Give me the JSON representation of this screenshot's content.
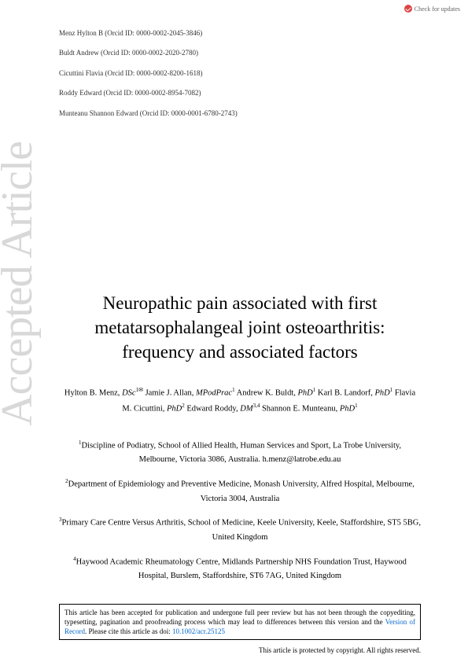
{
  "checkUpdates": "Check for updates",
  "orcid": [
    "Menz Hylton B (Orcid ID: 0000-0002-2045-3846)",
    "Buldt Andrew (Orcid ID: 0000-0002-2020-2780)",
    "Cicuttini Flavia (Orcid ID: 0000-0002-8200-1618)",
    "Roddy Edward (Orcid ID: 0000-0002-8954-7082)",
    "Munteanu Shannon Edward (Orcid ID: 0000-0001-6780-2743)"
  ],
  "watermark": "Accepted Article",
  "title": "Neuropathic pain associated with first metatarsophalangeal joint osteoarthritis: frequency and associated factors",
  "authors": {
    "a1_name": "Hylton B. Menz, ",
    "a1_deg": "DSc",
    "a1_sup": "1✉",
    "a2_name": " Jamie J. Allan, ",
    "a2_deg": "MPodPrac",
    "a2_sup": "1",
    "a3_name": " Andrew K. Buldt, ",
    "a3_deg": "PhD",
    "a3_sup": "1",
    "a4_name": " Karl B. Landorf, ",
    "a4_deg": "PhD",
    "a4_sup": "1",
    "a5_name": " Flavia M. Cicuttini, ",
    "a5_deg": "PhD",
    "a5_sup": "2",
    "a6_name": " Edward Roddy, ",
    "a6_deg": "DM",
    "a6_sup": "3,4",
    "a7_name": " Shannon E. Munteanu, ",
    "a7_deg": "PhD",
    "a7_sup": "1"
  },
  "affiliations": [
    {
      "sup": "1",
      "text": "Discipline of Podiatry, School of Allied Health, Human Services and Sport, La Trobe University, Melbourne, Victoria 3086, Australia. h.menz@latrobe.edu.au"
    },
    {
      "sup": "2",
      "text": "Department of Epidemiology and Preventive Medicine, Monash University, Alfred Hospital, Melbourne, Victoria 3004, Australia"
    },
    {
      "sup": "3",
      "text": "Primary Care Centre Versus Arthritis, School of Medicine, Keele University, Keele, Staffordshire, ST5 5BG, United Kingdom"
    },
    {
      "sup": "4",
      "text": "Haywood Academic Rheumatology Centre, Midlands Partnership NHS Foundation Trust, Haywood Hospital, Burslem, Staffordshire, ST6 7AG, United Kingdom"
    }
  ],
  "notice": {
    "pre": "This article has been accepted for publication and undergone full peer review but has not been through the copyediting, typesetting, pagination and proofreading process which may lead to differences between this version and the ",
    "vor": "Version of Record",
    "mid": ". Please cite this article as doi: ",
    "doi": "10.1002/acr.25125"
  },
  "copyright": "This article is protected by copyright. All rights reserved."
}
